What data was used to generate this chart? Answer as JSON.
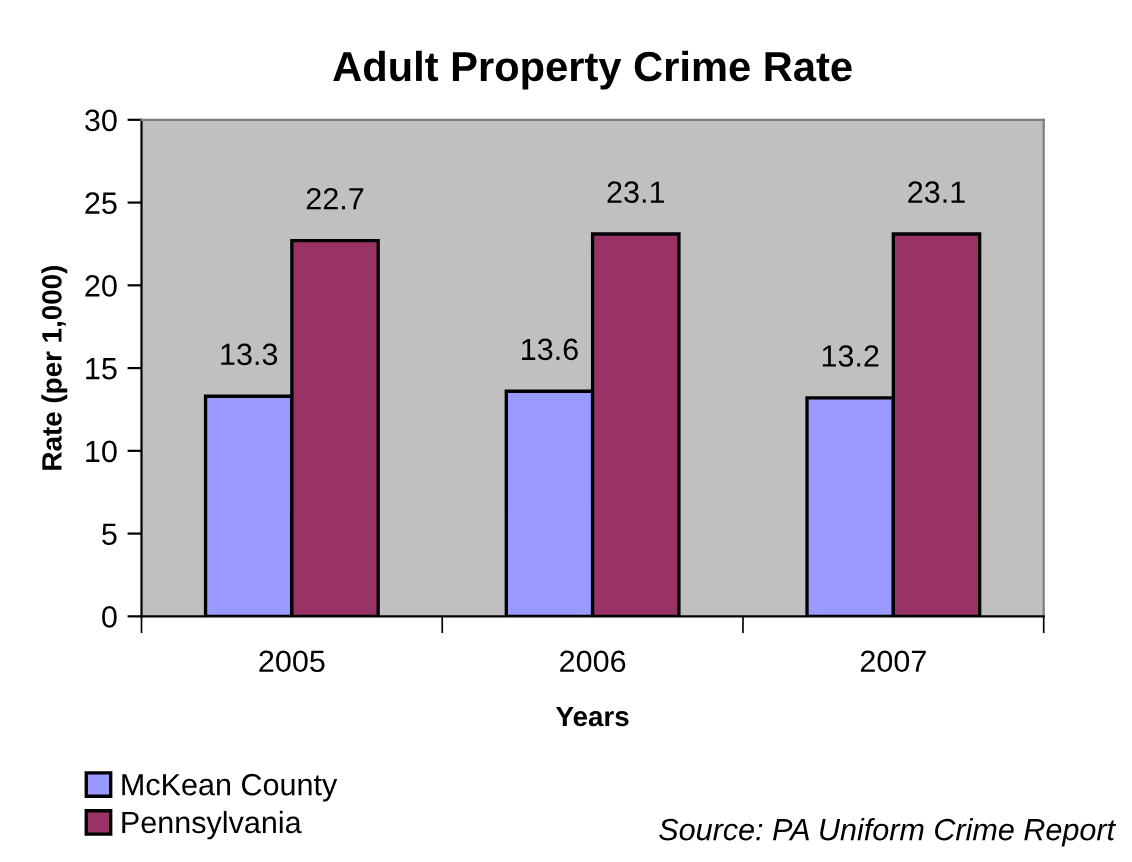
{
  "chart_data": {
    "type": "bar",
    "title": "Adult Property Crime Rate",
    "xlabel": "Years",
    "ylabel": "Rate (per 1,000)",
    "categories": [
      "2005",
      "2006",
      "2007"
    ],
    "series": [
      {
        "name": "McKean County",
        "color": "#9999ff",
        "values": [
          13.3,
          13.6,
          13.2
        ]
      },
      {
        "name": "Pennsylvania",
        "color": "#993366",
        "values": [
          22.7,
          23.1,
          23.1
        ]
      }
    ],
    "ylim": [
      0,
      30
    ],
    "yticks": [
      0,
      5,
      10,
      15,
      20,
      25,
      30
    ],
    "grid": false,
    "legend": "bottom left",
    "data_labels": true,
    "annotations": [
      "Source: PA Uniform Crime Report"
    ]
  }
}
